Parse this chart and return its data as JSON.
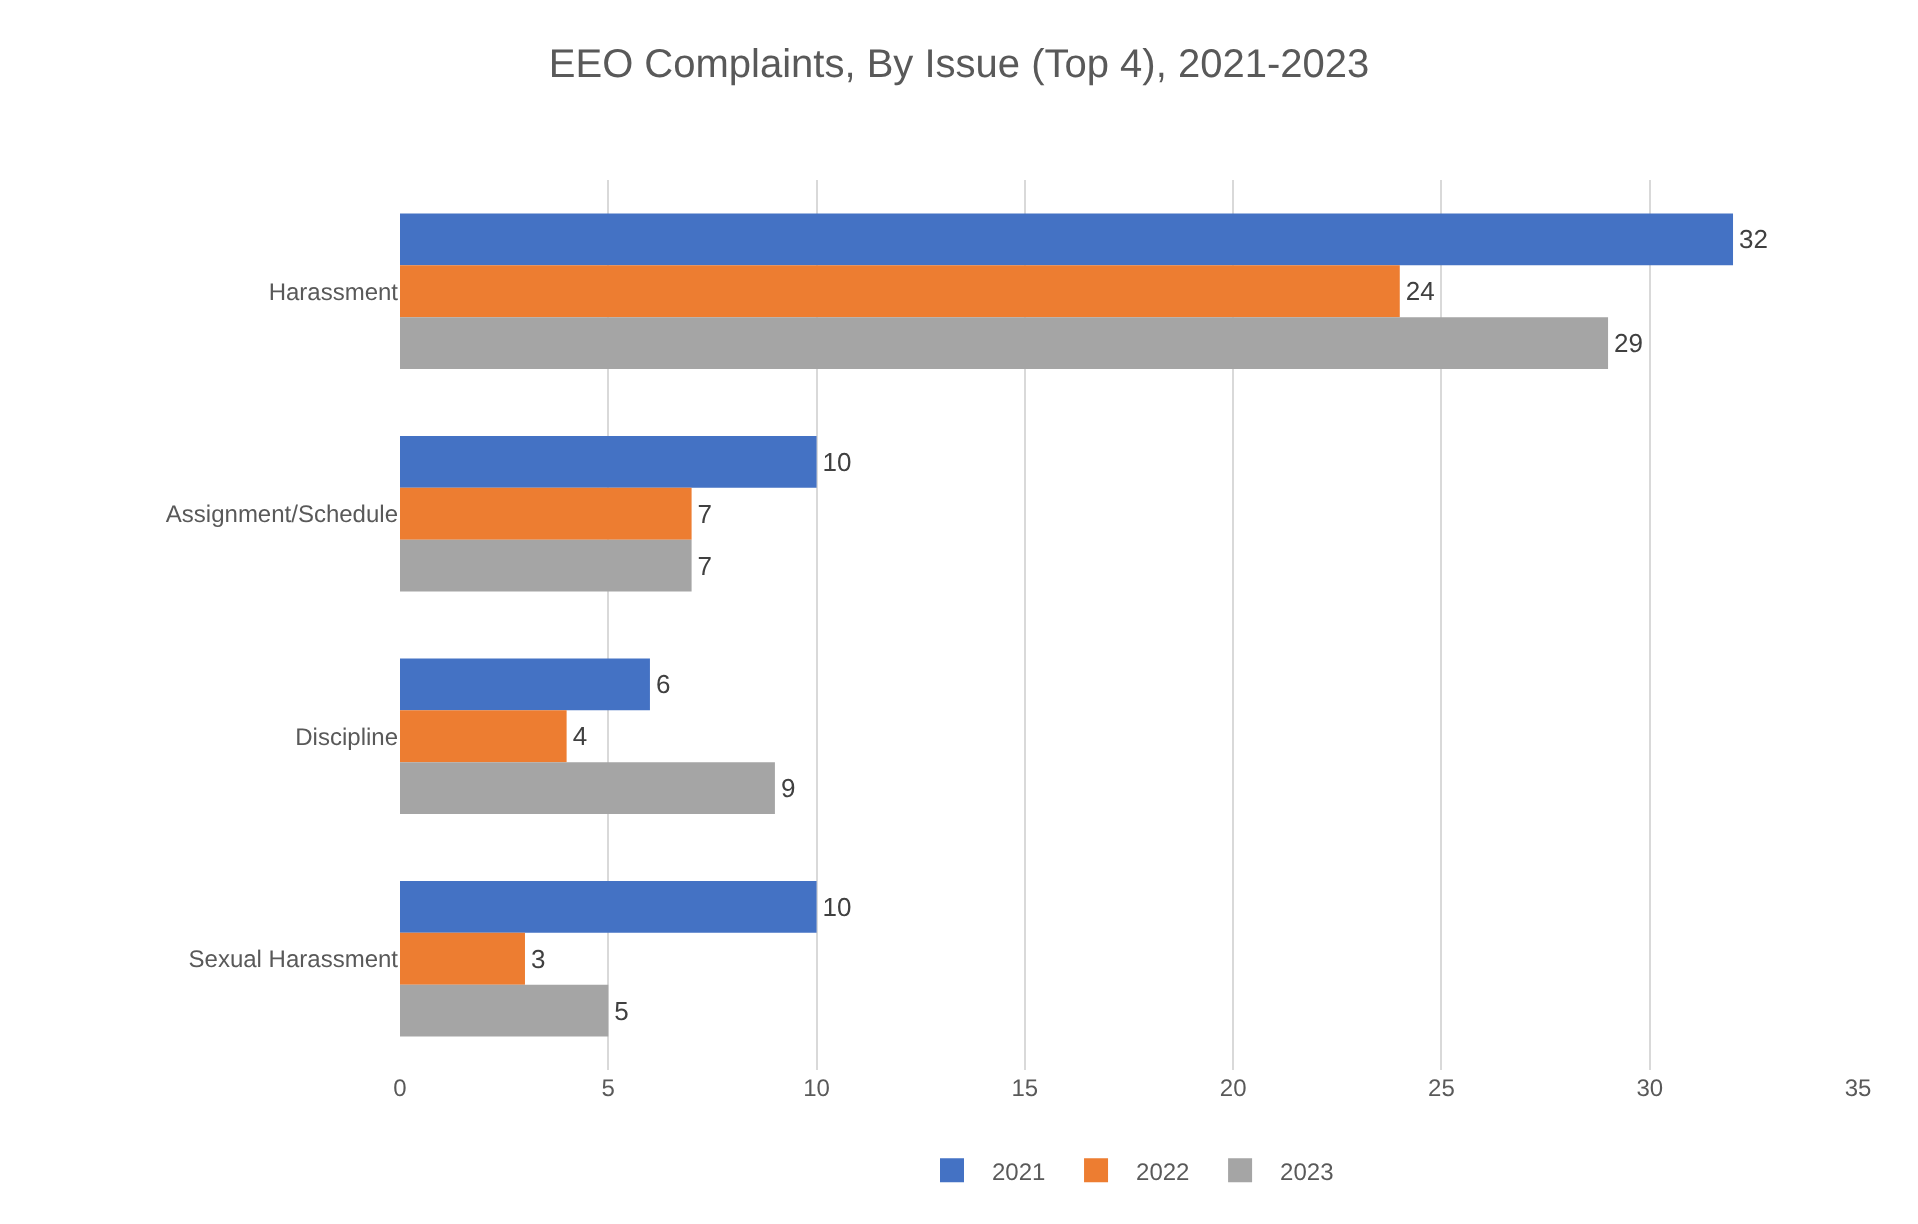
{
  "chart_data": {
    "type": "bar",
    "orientation": "horizontal",
    "title": "EEO Complaints, By Issue (Top 4), 2021-2023",
    "categories": [
      "Harassment",
      "Assignment/Schedule",
      "Discipline",
      "Sexual Harassment"
    ],
    "series": [
      {
        "name": "2021",
        "color": "#4472c4",
        "values": [
          32,
          10,
          6,
          10
        ]
      },
      {
        "name": "2022",
        "color": "#ed7d31",
        "values": [
          24,
          7,
          4,
          3
        ]
      },
      {
        "name": "2023",
        "color": "#a5a5a5",
        "values": [
          29,
          7,
          9,
          5
        ]
      }
    ],
    "xlim": [
      0,
      35
    ],
    "xticks": [
      0,
      5,
      10,
      15,
      20,
      25,
      30,
      35
    ],
    "grid": "x",
    "legend": "bottom",
    "data_labels": true
  }
}
